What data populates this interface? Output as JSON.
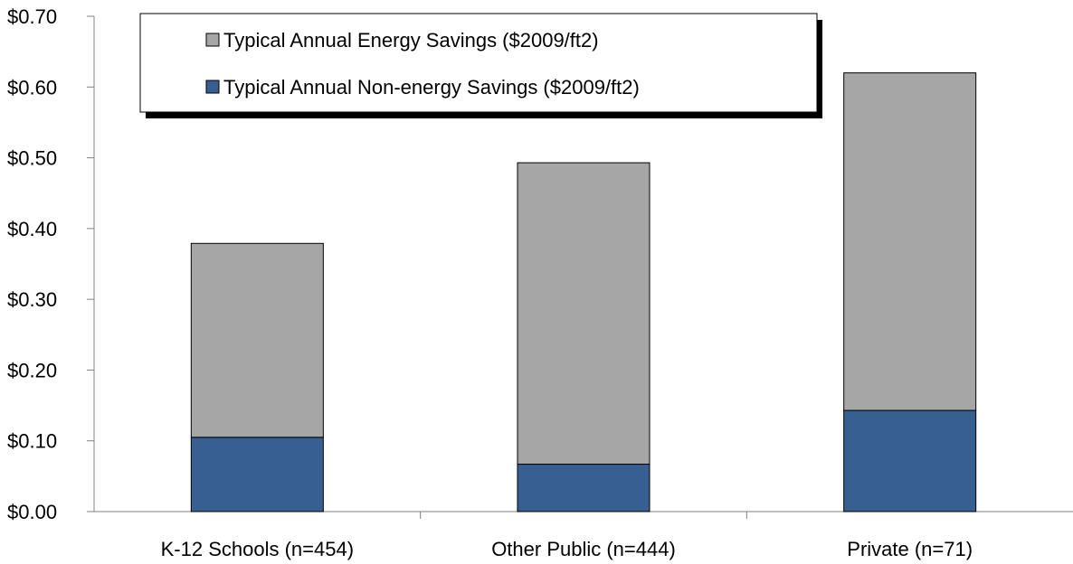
{
  "chart_data": {
    "type": "bar",
    "stacked": true,
    "categories": [
      "K-12 Schools (n=454)",
      "Other Public (n=444)",
      "Private (n=71)"
    ],
    "series": [
      {
        "name": "Typical Annual Non-energy Savings ($2009/ft2)",
        "values": [
          0.105,
          0.067,
          0.143
        ],
        "color": "#375f91"
      },
      {
        "name": "Typical Annual Energy Savings ($2009/ft2)",
        "values": [
          0.274,
          0.426,
          0.477
        ],
        "color": "#a6a6a6"
      }
    ],
    "yticks": [
      "$0.00",
      "$0.10",
      "$0.20",
      "$0.30",
      "$0.40",
      "$0.50",
      "$0.60",
      "$0.70"
    ],
    "ylim": [
      0,
      0.7
    ],
    "grid": false,
    "legend": {
      "placement": "top-left",
      "entries": [
        "Typical Annual Energy Savings ($2009/ft2)",
        "Typical Annual Non-energy Savings ($2009/ft2)"
      ]
    },
    "title": "",
    "xlabel": "",
    "ylabel": ""
  }
}
